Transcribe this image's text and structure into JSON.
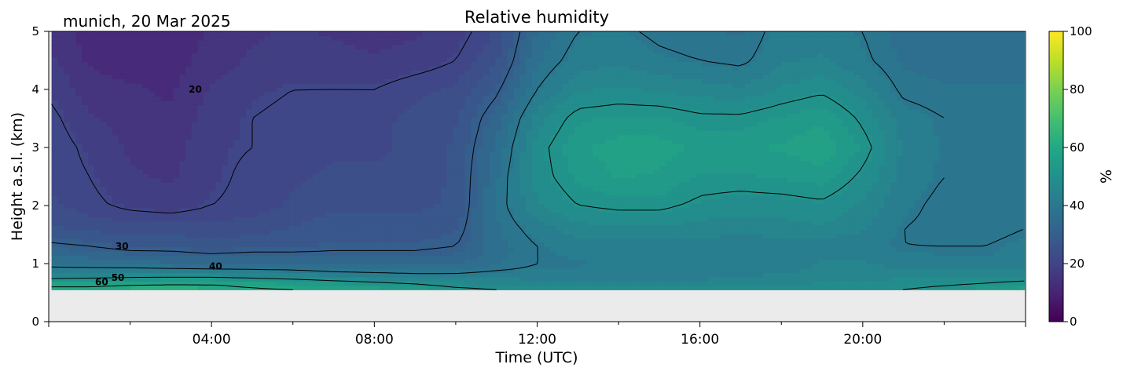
{
  "chart_data": {
    "type": "heatmap",
    "title": "Relative humidity",
    "subtitle": "munich, 20 Mar 2025",
    "xlabel": "Time (UTC)",
    "ylabel": "Height a.s.l. (km)",
    "x_tick_labels": [
      "04:00",
      "08:00",
      "12:00",
      "16:00",
      "20:00"
    ],
    "x_tick_hours": [
      4,
      8,
      12,
      16,
      20
    ],
    "xlim_hours": [
      0,
      24
    ],
    "data_xlim_hours": [
      0.07,
      23.97
    ],
    "y_ticks": [
      0,
      1,
      2,
      3,
      4,
      5
    ],
    "ylim": [
      0,
      5
    ],
    "data_min_height_km": 0.55,
    "colorbar": {
      "label": "%",
      "ticks": [
        0,
        20,
        40,
        60,
        80,
        100
      ],
      "range": [
        0,
        100
      ],
      "colormap": "viridis"
    },
    "contour_labels": [
      {
        "text": "20",
        "x_hour": 3.6,
        "y_km": 4.0
      },
      {
        "text": "30",
        "x_hour": 1.8,
        "y_km": 1.3
      },
      {
        "text": "40",
        "x_hour": 4.1,
        "y_km": 0.95
      },
      {
        "text": "50",
        "x_hour": 1.7,
        "y_km": 0.76
      },
      {
        "text": "60",
        "x_hour": 1.3,
        "y_km": 0.68
      }
    ],
    "times_h": [
      0.07,
      1,
      2,
      3,
      4,
      5,
      6,
      7,
      8,
      9,
      10,
      11,
      12,
      13,
      14,
      15,
      16,
      17,
      18,
      19,
      20,
      21,
      22,
      23,
      23.97
    ],
    "heights_km": [
      0.55,
      0.65,
      0.8,
      1.0,
      1.3,
      1.6,
      2.0,
      2.5,
      3.0,
      3.5,
      4.0,
      4.5,
      5.0
    ],
    "rh_percent": [
      [
        62,
        62,
        63,
        63,
        62,
        61,
        60,
        59,
        58,
        56,
        52,
        50,
        48,
        48,
        48,
        48,
        48,
        48,
        48,
        49,
        49,
        50,
        52,
        55,
        58
      ],
      [
        58,
        58,
        59,
        60,
        60,
        58,
        56,
        54,
        52,
        50,
        47,
        46,
        45,
        45,
        45,
        45,
        45,
        46,
        46,
        47,
        47,
        48,
        49,
        50,
        52
      ],
      [
        45,
        46,
        47,
        47,
        47,
        46,
        45,
        43,
        42,
        41,
        41,
        42,
        42,
        42,
        42,
        42,
        42,
        43,
        44,
        44,
        45,
        46,
        46,
        46,
        46
      ],
      [
        38,
        37,
        36,
        35,
        34,
        34,
        34,
        33,
        33,
        33,
        34,
        37,
        40,
        40,
        41,
        41,
        41,
        41,
        42,
        44,
        44,
        42,
        41,
        41,
        41
      ],
      [
        31,
        30,
        28,
        28,
        27,
        28,
        28,
        29,
        29,
        29,
        30,
        36,
        40,
        42,
        42,
        42,
        42,
        42,
        42,
        41,
        41,
        40,
        40,
        40,
        41
      ],
      [
        26,
        25,
        24,
        24,
        24,
        24,
        26,
        27,
        27,
        27,
        28,
        37,
        42,
        45,
        46,
        46,
        45,
        44,
        45,
        46,
        44,
        40,
        39,
        39,
        40
      ],
      [
        23,
        21,
        19,
        18,
        20,
        21,
        23,
        25,
        25,
        25,
        26,
        38,
        46,
        50,
        51,
        51,
        49,
        48,
        48,
        49,
        46,
        41,
        39,
        40,
        40
      ],
      [
        22,
        20,
        17,
        16,
        19,
        21,
        22,
        23,
        23,
        24,
        26,
        37,
        48,
        53,
        56,
        55,
        52,
        52,
        53,
        54,
        49,
        42,
        40,
        40,
        40
      ],
      [
        22,
        19,
        16,
        15,
        19,
        20,
        22,
        22,
        22,
        23,
        26,
        35,
        48,
        55,
        57,
        57,
        55,
        55,
        56,
        58,
        52,
        43,
        40,
        40,
        40
      ],
      [
        21,
        17,
        15,
        14,
        18,
        20,
        21,
        22,
        22,
        23,
        25,
        33,
        45,
        52,
        53,
        53,
        51,
        51,
        53,
        55,
        49,
        42,
        40,
        40,
        40
      ],
      [
        19,
        15,
        14,
        13,
        17,
        19,
        20,
        20,
        20,
        22,
        23,
        29,
        40,
        46,
        47,
        46,
        45,
        44,
        47,
        49,
        45,
        39,
        38,
        38,
        38
      ],
      [
        17,
        13,
        12,
        12,
        15,
        17,
        18,
        18,
        17,
        18,
        20,
        25,
        37,
        42,
        43,
        41,
        40,
        39,
        43,
        44,
        41,
        37,
        36,
        36,
        36
      ],
      [
        16,
        12,
        11,
        11,
        14,
        16,
        17,
        16,
        15,
        16,
        18,
        23,
        35,
        40,
        41,
        39,
        38,
        37,
        42,
        42,
        40,
        36,
        35,
        35,
        35
      ]
    ]
  }
}
